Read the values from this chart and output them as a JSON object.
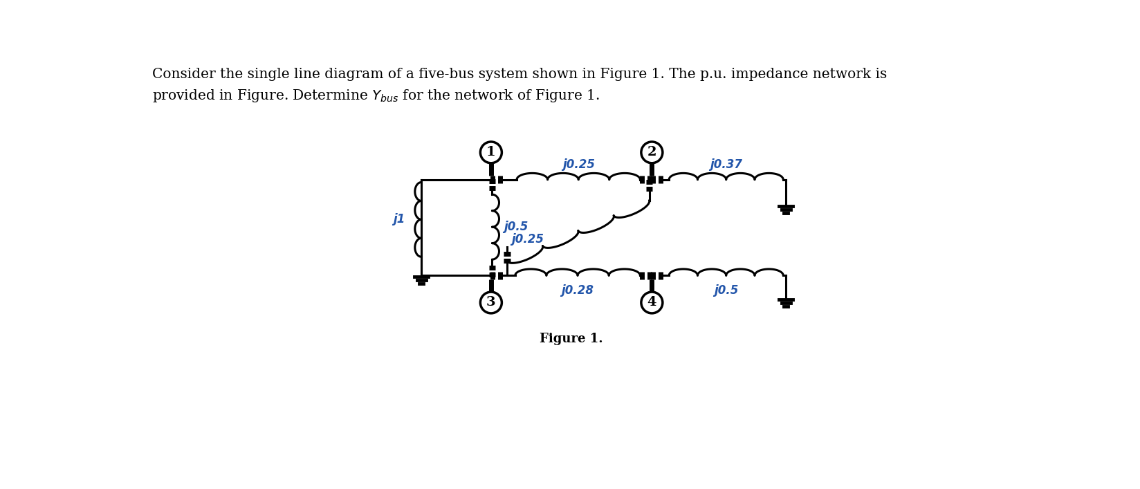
{
  "title_line1": "Consider the single line diagram of a five-bus system shown in Figure 1. The p.u. impedance network is",
  "title_line2": "provided in Figure. Determine $Y_{bus}$ for the network of Figure 1.",
  "figure_label": "Figure 1.",
  "bus_labels": [
    "1",
    "2",
    "3",
    "4"
  ],
  "impedance_labels": {
    "j025_top": "j0.25",
    "j037": "j0.37",
    "j05_left": "j0.5",
    "j025_diag": "j0.25",
    "j028": "j0.28",
    "j05_bot": "j0.5",
    "j1": "j1"
  },
  "background_color": "#ffffff",
  "line_color": "#000000",
  "text_color": "#2255aa",
  "font_size_title": 14.5,
  "font_size_label": 12,
  "font_size_bus": 14
}
